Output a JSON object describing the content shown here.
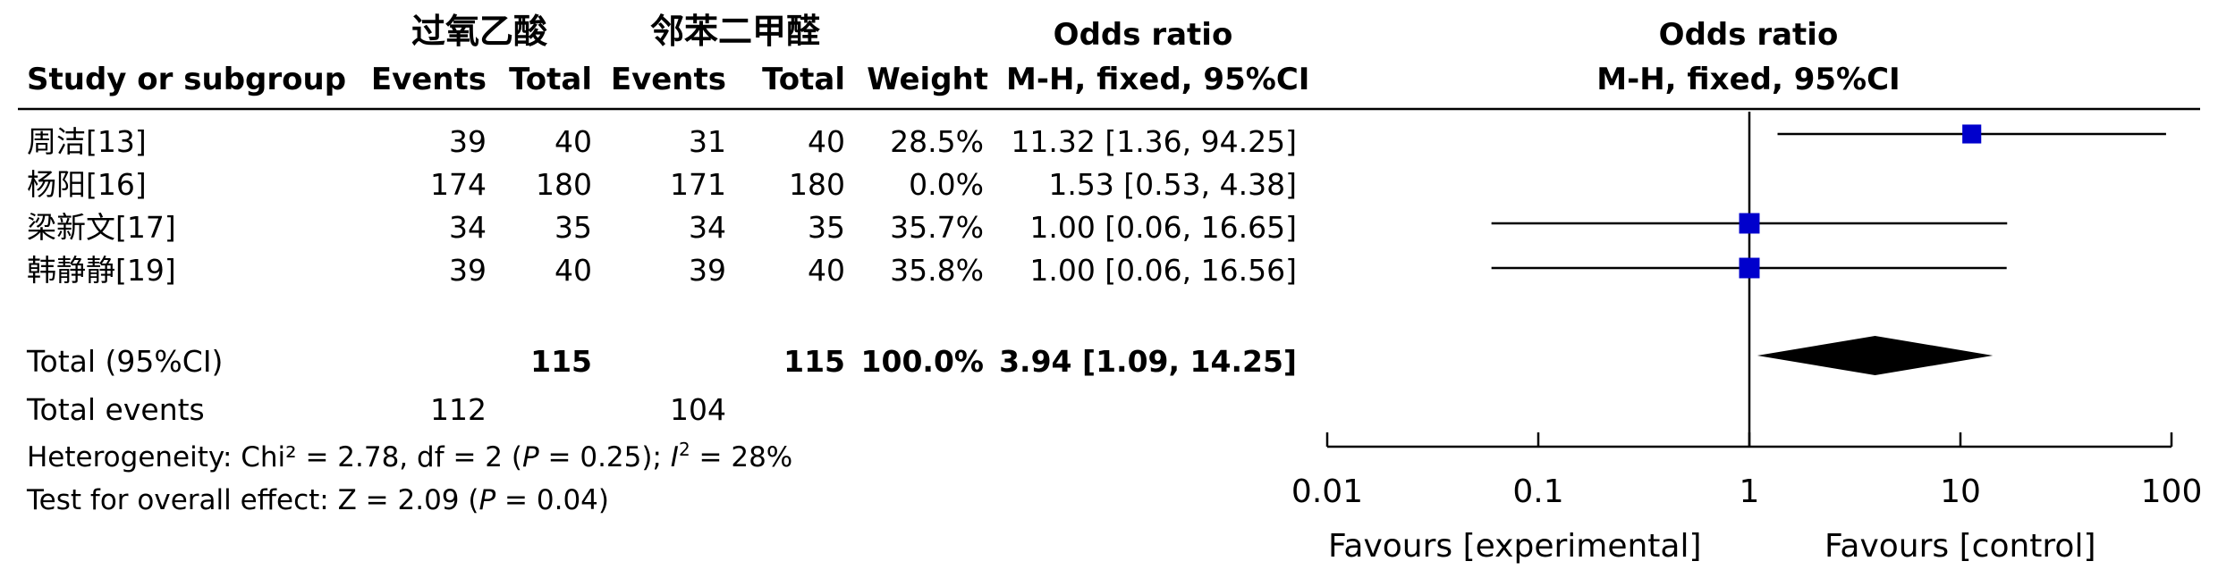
{
  "group_headers": {
    "experimental": "过氧乙酸",
    "control": "邻苯二甲醛"
  },
  "headers": {
    "study": "Study or subgroup",
    "events_exp": "Events",
    "total_exp": "Total",
    "events_ctrl": "Events",
    "total_ctrl": "Total",
    "weight": "Weight",
    "or_title": "Odds ratio",
    "or_method": "M-H, fixed, 95%CI",
    "plot_title": "Odds ratio",
    "plot_method": "M-H, fixed, 95%CI"
  },
  "studies": [
    {
      "name": "周洁[13]",
      "events_exp": "39",
      "total_exp": "40",
      "events_ctrl": "31",
      "total_ctrl": "40",
      "weight": "28.5%",
      "or_text": "11.32 [1.36, 94.25]"
    },
    {
      "name": "杨阳[16]",
      "events_exp": "174",
      "total_exp": "180",
      "events_ctrl": "171",
      "total_ctrl": "180",
      "weight": "0.0%",
      "or_text": "1.53 [0.53, 4.38]"
    },
    {
      "name": "梁新文[17]",
      "events_exp": "34",
      "total_exp": "35",
      "events_ctrl": "34",
      "total_ctrl": "35",
      "weight": "35.7%",
      "or_text": "1.00 [0.06, 16.65]"
    },
    {
      "name": "韩静静[19]",
      "events_exp": "39",
      "total_exp": "40",
      "events_ctrl": "39",
      "total_ctrl": "40",
      "weight": "35.8%",
      "or_text": "1.00 [0.06, 16.56]"
    }
  ],
  "total": {
    "label": "Total (95%CI)",
    "total_exp": "115",
    "total_ctrl": "115",
    "weight": "100.0%",
    "or_text": "3.94 [1.09, 14.25]"
  },
  "total_events": {
    "label": "Total events",
    "events_exp": "112",
    "events_ctrl": "104"
  },
  "heterogeneity": {
    "prefix": "Heterogeneity: Chi² = 2.78, df = 2 (",
    "p": "P",
    "mid": " = 0.25); ",
    "i": "I",
    "sup": "2",
    "suffix": " = 28%"
  },
  "overall": {
    "prefix": "Test for overall effect: Z = 2.09 (",
    "p": "P",
    "suffix": " = 0.04)"
  },
  "axis": {
    "ticks": [
      "0.01",
      "0.1",
      "1",
      "10",
      "100"
    ],
    "favours_left": "Favours [experimental]",
    "favours_right": "Favours [control]"
  },
  "colors": {
    "study_marker": "#0000cc",
    "diamond": "#000000",
    "lines": "#000000"
  },
  "chart_data": {
    "type": "forest",
    "scale": "log",
    "xlim": [
      0.01,
      100
    ],
    "x_ticks": [
      0.01,
      0.1,
      1,
      10,
      100
    ],
    "null_line": 1,
    "series": [
      {
        "study": "周洁[13]",
        "or": 11.32,
        "ci": [
          1.36,
          94.25
        ],
        "weight": 28.5
      },
      {
        "study": "杨阳[16]",
        "or": 1.53,
        "ci": [
          0.53,
          4.38
        ],
        "weight": 0.0
      },
      {
        "study": "梁新文[17]",
        "or": 1.0,
        "ci": [
          0.06,
          16.65
        ],
        "weight": 35.7
      },
      {
        "study": "韩静静[19]",
        "or": 1.0,
        "ci": [
          0.06,
          16.56
        ],
        "weight": 35.8
      }
    ],
    "pooled": {
      "or": 3.94,
      "ci": [
        1.09,
        14.25
      ]
    }
  }
}
